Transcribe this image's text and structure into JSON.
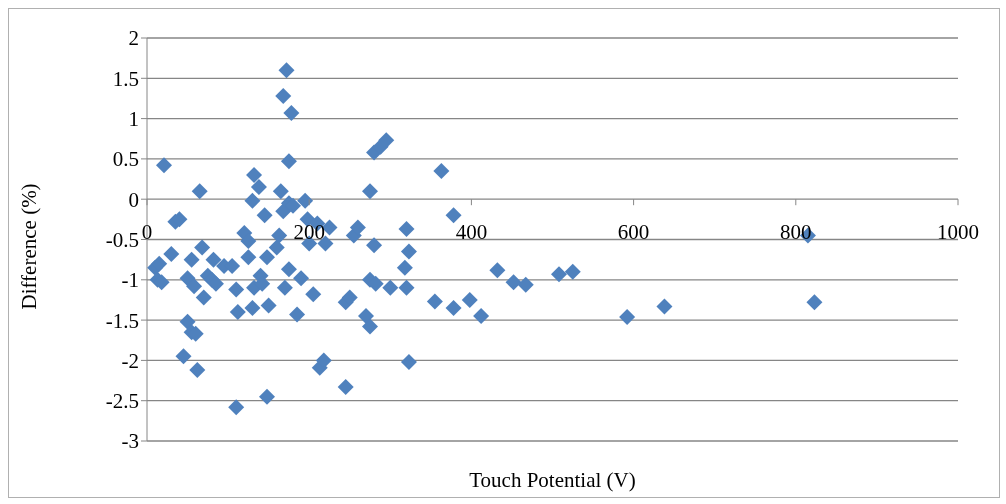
{
  "chart_data": {
    "type": "scatter",
    "xlabel": "Touch Potential (V)",
    "ylabel": "Difference (%)",
    "marker": "diamond",
    "grid": "y",
    "legend": false,
    "xlim": [
      0,
      1000
    ],
    "xticks": [
      0,
      200,
      400,
      600,
      800,
      1000
    ],
    "ylim": [
      -3,
      2
    ],
    "yticks": [
      -3,
      -2.5,
      -2,
      -1.5,
      -1,
      -0.5,
      0,
      0.5,
      1,
      1.5,
      2
    ],
    "series": [
      {
        "color": "#4f81bd",
        "x": [
          21,
          10,
          15,
          13,
          18,
          30,
          35,
          40,
          50,
          55,
          60,
          45,
          62,
          50,
          55,
          58,
          65,
          68,
          70,
          75,
          80,
          82,
          85,
          95,
          105,
          110,
          112,
          110,
          120,
          125,
          125,
          130,
          132,
          132,
          130,
          138,
          140,
          142,
          145,
          148,
          150,
          148,
          160,
          163,
          165,
          168,
          168,
          170,
          172,
          175,
          175,
          175,
          178,
          180,
          185,
          190,
          195,
          198,
          200,
          205,
          210,
          213,
          218,
          220,
          225,
          245,
          250,
          245,
          255,
          260,
          270,
          275,
          275,
          275,
          280,
          282,
          280,
          288,
          295,
          300,
          318,
          320,
          320,
          323,
          323,
          355,
          363,
          378,
          378,
          398,
          412,
          432,
          452,
          467,
          508,
          525,
          592,
          638,
          815,
          823
        ],
        "values": [
          0.42,
          -0.85,
          -0.8,
          -1,
          -1.03,
          -0.68,
          -0.28,
          -0.25,
          -1.52,
          -1.65,
          -1.67,
          -1.95,
          -2.12,
          -0.98,
          -0.75,
          -1.08,
          0.1,
          -0.6,
          -1.22,
          -0.95,
          -1,
          -0.75,
          -1.05,
          -0.83,
          -0.83,
          -1.12,
          -1.4,
          -2.58,
          -0.42,
          -0.52,
          -0.72,
          -1.35,
          -1.1,
          0.3,
          -0.02,
          0.15,
          -0.95,
          -1.05,
          -0.2,
          -0.72,
          -1.32,
          -2.45,
          -0.6,
          -0.45,
          0.1,
          -0.15,
          1.28,
          -1.1,
          1.6,
          -0.05,
          0.47,
          -0.87,
          1.07,
          -0.08,
          -1.43,
          -0.98,
          -0.02,
          -0.25,
          -0.55,
          -1.18,
          -0.3,
          -2.09,
          -2,
          -0.55,
          -0.35,
          -1.28,
          -1.22,
          -2.33,
          -0.45,
          -0.35,
          -1.45,
          -1,
          -1.58,
          0.1,
          -0.57,
          -1.05,
          0.58,
          0.65,
          0.73,
          -1.1,
          -0.85,
          -1.1,
          -0.37,
          -0.65,
          -2.02,
          -1.27,
          0.35,
          -0.2,
          -1.35,
          -1.25,
          -1.45,
          -0.88,
          -1.03,
          -1.06,
          -0.93,
          -0.9,
          -1.46,
          -1.33,
          -0.45,
          -1.28
        ]
      }
    ]
  }
}
